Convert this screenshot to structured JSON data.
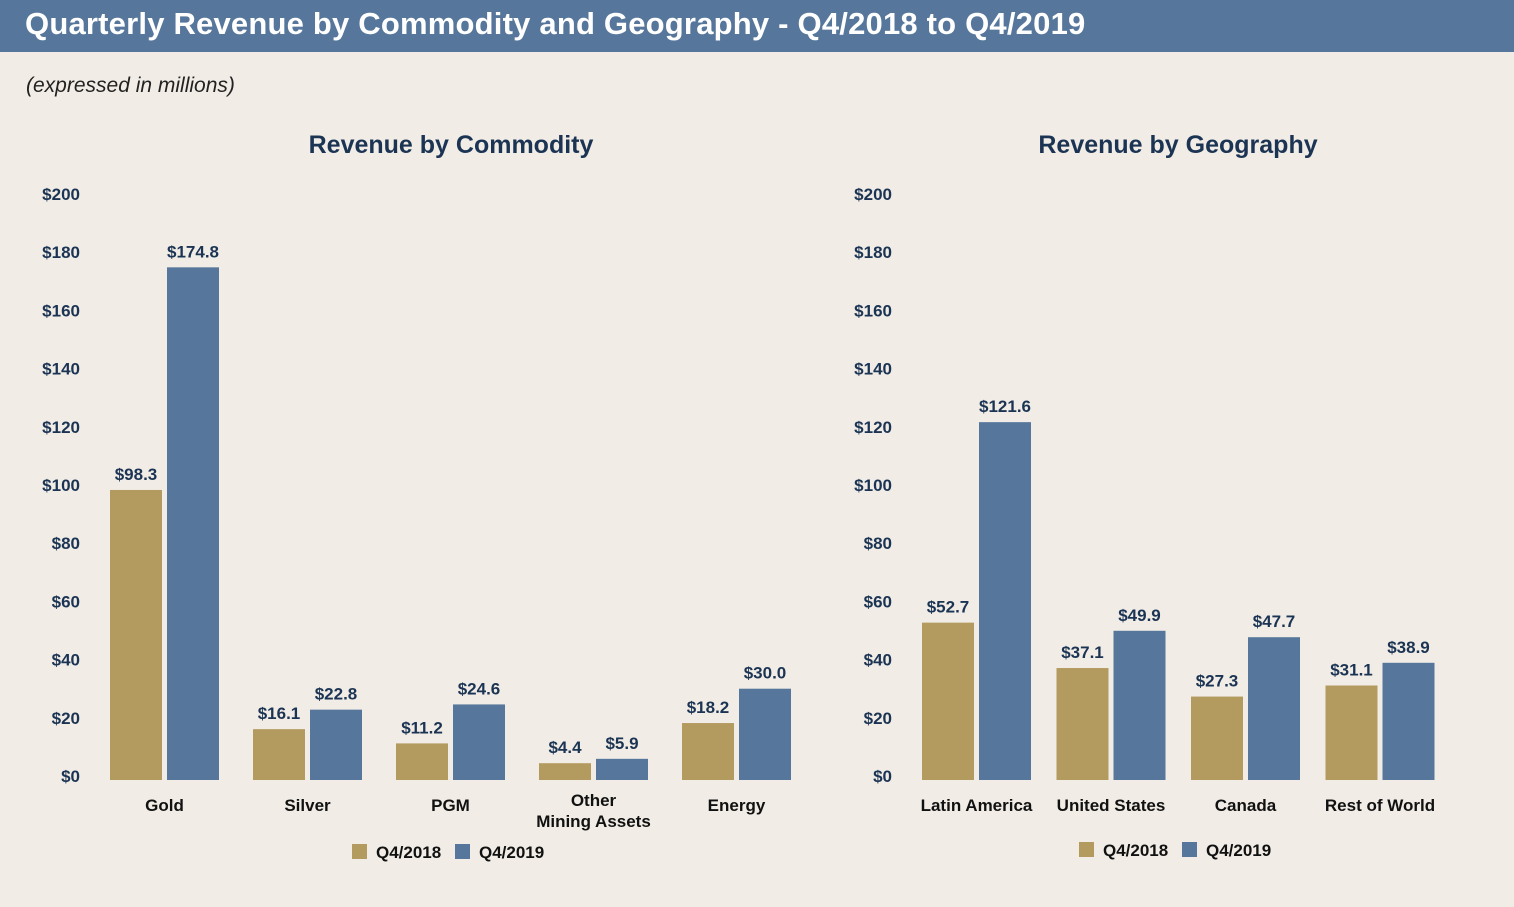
{
  "header": {
    "title": "Quarterly Revenue by Commodity and Geography - Q4/2018 to Q4/2019",
    "subtitle": "(expressed in millions)"
  },
  "colors": {
    "header_bg": "#56779b",
    "background": "#f1ede6",
    "q4_2018": "#b39a5e",
    "q4_2019": "#56779b"
  },
  "chart_data": [
    {
      "type": "bar",
      "title": "Revenue by Commodity",
      "xlabel": "",
      "ylabel": "",
      "ylim": [
        0,
        200
      ],
      "yticks": [
        0,
        20,
        40,
        60,
        80,
        100,
        120,
        140,
        160,
        180,
        200
      ],
      "ytick_labels": [
        "$0",
        "$20",
        "$40",
        "$60",
        "$80",
        "$100",
        "$120",
        "$140",
        "$160",
        "$180",
        "$200"
      ],
      "categories": [
        "Gold",
        "Silver",
        "PGM",
        "Other\nMining Assets",
        "Energy"
      ],
      "series": [
        {
          "name": "Q4/2018",
          "values": [
            98.3,
            16.1,
            11.2,
            4.4,
            18.2
          ],
          "labels": [
            "$98.3",
            "$16.1",
            "$11.2",
            "$4.4",
            "$18.2"
          ]
        },
        {
          "name": "Q4/2019",
          "values": [
            174.8,
            22.8,
            24.6,
            5.9,
            30.0
          ],
          "labels": [
            "$174.8",
            "$22.8",
            "$24.6",
            "$5.9",
            "$30.0"
          ]
        }
      ],
      "legend": "bottom-center",
      "grid": false
    },
    {
      "type": "bar",
      "title": "Revenue by Geography",
      "xlabel": "",
      "ylabel": "",
      "ylim": [
        0,
        200
      ],
      "yticks": [
        0,
        20,
        40,
        60,
        80,
        100,
        120,
        140,
        160,
        180,
        200
      ],
      "ytick_labels": [
        "$0",
        "$20",
        "$40",
        "$60",
        "$80",
        "$100",
        "$120",
        "$140",
        "$160",
        "$180",
        "$200"
      ],
      "categories": [
        "Latin America",
        "United States",
        "Canada",
        "Rest of World"
      ],
      "series": [
        {
          "name": "Q4/2018",
          "values": [
            52.7,
            37.1,
            27.3,
            31.1
          ],
          "labels": [
            "$52.7",
            "$37.1",
            "$27.3",
            "$31.1"
          ]
        },
        {
          "name": "Q4/2019",
          "values": [
            121.6,
            49.9,
            47.7,
            38.9
          ],
          "labels": [
            "$121.6",
            "$49.9",
            "$47.7",
            "$38.9"
          ]
        }
      ],
      "legend": "bottom-center",
      "grid": false
    }
  ]
}
